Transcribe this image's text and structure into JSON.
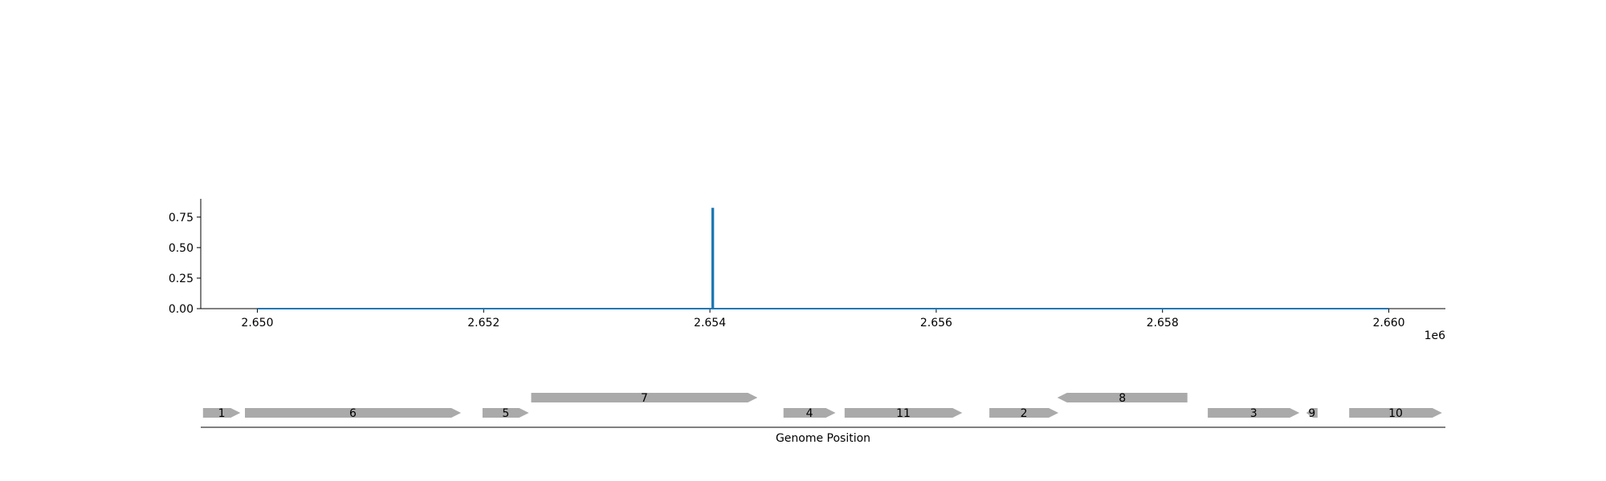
{
  "chart_data": [
    {
      "type": "line",
      "title": "",
      "xlabel": "",
      "ylabel": "",
      "x_offset_label": "1e6",
      "xlim": [
        2649500,
        2660500
      ],
      "ylim": [
        0,
        0.9
      ],
      "x_ticks": [
        2650000,
        2652000,
        2654000,
        2656000,
        2658000,
        2660000
      ],
      "x_tick_labels": [
        "2.650",
        "2.652",
        "2.654",
        "2.656",
        "2.658",
        "2.660"
      ],
      "y_ticks": [
        0,
        0.25,
        0.5,
        0.75
      ],
      "y_tick_labels": [
        "0.00",
        "0.25",
        "0.50",
        "0.75"
      ],
      "grid": false,
      "legend": "none",
      "series": [
        {
          "color": "#1f77b4",
          "points": [
            [
              2650000,
              0
            ],
            [
              2654020,
              0
            ],
            [
              2654020,
              0.82
            ],
            [
              2654030,
              0.82
            ],
            [
              2654030,
              0
            ],
            [
              2660000,
              0
            ]
          ]
        }
      ]
    },
    {
      "type": "gene-map",
      "title": "",
      "xlabel": "Genome Position",
      "xlim": [
        2649500,
        2660500
      ],
      "gene_color": "#aaaaaa",
      "genes": [
        {
          "label": "1",
          "start": 2649520,
          "end": 2649850,
          "strand": "+",
          "track": 0
        },
        {
          "label": "6",
          "start": 2649890,
          "end": 2651800,
          "strand": "+",
          "track": 0
        },
        {
          "label": "5",
          "start": 2651990,
          "end": 2652400,
          "strand": "+",
          "track": 0
        },
        {
          "label": "7",
          "start": 2652420,
          "end": 2654420,
          "strand": "+",
          "track": 1
        },
        {
          "label": "4",
          "start": 2654650,
          "end": 2655110,
          "strand": "+",
          "track": 0
        },
        {
          "label": "11",
          "start": 2655190,
          "end": 2656230,
          "strand": "+",
          "track": 0
        },
        {
          "label": "2",
          "start": 2656470,
          "end": 2657080,
          "strand": "+",
          "track": 0
        },
        {
          "label": "8",
          "start": 2657070,
          "end": 2658220,
          "strand": "-",
          "track": 1
        },
        {
          "label": "3",
          "start": 2658400,
          "end": 2659210,
          "strand": "+",
          "track": 0
        },
        {
          "label": "9",
          "start": 2659270,
          "end": 2659370,
          "strand": "-",
          "track": 0
        },
        {
          "label": "10",
          "start": 2659650,
          "end": 2660470,
          "strand": "+",
          "track": 0
        }
      ]
    }
  ]
}
